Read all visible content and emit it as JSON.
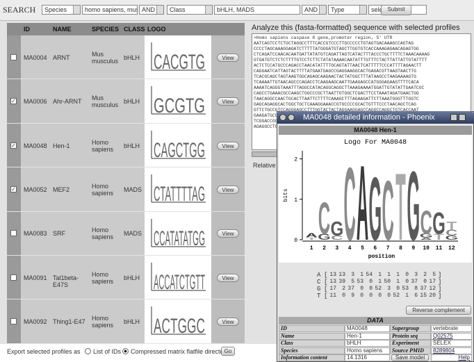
{
  "search": {
    "label": "SEARCH",
    "field1": "Species",
    "value1": "homo sapiens, mus mu",
    "op1": "AND",
    "field2": "Class",
    "value2": "bHLH, MADS",
    "op2": "AND",
    "field3": "Type",
    "value3": "selex",
    "submit": "Submit"
  },
  "table": {
    "headers": [
      "ID",
      "NAME",
      "SPECIES",
      "CLASS",
      "LOGO"
    ],
    "rows": [
      {
        "checked": false,
        "id": "MA0004",
        "name": "ARNT",
        "species": "Mus musculus",
        "class": "bHLH",
        "logo": "CACGTG",
        "button": "View"
      },
      {
        "checked": true,
        "id": "MA0006",
        "name": "Ahr-ARNT",
        "species": "Mus musculus",
        "class": "bHLH",
        "logo": "GCGTG",
        "button": "View"
      },
      {
        "checked": true,
        "id": "MA0048",
        "name": "Hen-1",
        "species": "Homo sapiens",
        "class": "bHLH",
        "logo": "CAGCTGG",
        "button": "View"
      },
      {
        "checked": true,
        "id": "MA0052",
        "name": "MEF2",
        "species": "Homo sapiens",
        "class": "MADS",
        "logo": "CTATTTTAG",
        "button": "View"
      },
      {
        "checked": false,
        "id": "MA0083",
        "name": "SRF",
        "species": "Homo sapiens",
        "class": "MADS",
        "logo": "CCATATATGG",
        "button": "View"
      },
      {
        "checked": false,
        "id": "MA0091",
        "name": "Tal1beta-E47S",
        "species": "Homo sapiens",
        "class": "bHLH",
        "logo": "ACCATCTGTT",
        "button": "View"
      },
      {
        "checked": false,
        "id": "MA0092",
        "name": "Thing1-E47",
        "species": "Homo sapiens",
        "class": "bHLH",
        "logo": "ACTGGC",
        "button": "View"
      }
    ]
  },
  "export": {
    "label": "Export selected profiles as",
    "option1": "List of IDs",
    "option2": "Compressed matrix flatfile directory",
    "selected": 2,
    "button": "Go"
  },
  "analyze": {
    "title": "Analyze this (fasta-formatted) sequence with selected profiles",
    "sequence": [
      ">Homo sapiens caspase 8 gene,promoter region, 5' UTR",
      "AATCAGTCCTCTGCTAGGCCTTTCACCGTCCCTTGCCCCCTGTAGTGACAAAGCCAGTAG",
      "CCCCTAGCAAAGGAGATCTTTTTATGGGATGTAGCTTGGTGTCACCAAAGAGAACAGAGTGG",
      "CTCAGATCCAACACAATGATTATATGTCAGATTAGTCATACTTTACCCTGCTTTTCTAAACAAAAG",
      "GTGATGTCTCTCTTTTGTCCTCTTCTATATAAAACAATATTTGTTTCTACTTATTATTGTATTTT",
      "ACTCTCCATGCCCAGACCTAACATATTTTGCAGTATTAACTCATTTTTCCCATTTTAGAACTT",
      "CAGGAATCATTAGTACTTTTATGAATGAGCCGAGGAAGGCACTGAGACGTTAAGTAACTTG",
      "TCACGCAGCTAGTAAGTGGCAGAGCAAGAACTACTATGGCTTTATAAGCCTAAGAAAAGTG",
      "TCAAAATTGTAACAGCCCAGACCTCAAGAAGCAATTGAAGAGCCATGGGAGAAGTTTTCACA",
      "AAAATCAGGGTAAATTTAGGCCATACAGGCAGGCTTAAAGAAAATGGATTGTATATTGAATCGC",
      "CAGCCTGAAACGCCAAGCTGGCCCGCTTAATTGTGGCTCGACTTCCTAAATAGATGAACTGG",
      "TAACAGGCCAACTGCACTTAATTCTTTTCAAAGCTTTAGAAGATTCTTAAATGGGTTTGGTC",
      "GAGCAGAGGCACTGGCTGCTCAAAGGAAACCGTGCCCCGCACTGTTTCCCTAACAGCTCAG",
      "GTTCTGCCGTCCAGGGAGCCTTTGGTACTACTAGGAAGGAGCCAGGCCAGGCTGTCACCAAT",
      "GAAGATGCCAGTTCAAGGCCTAAAGGATTTGGCCTCACCTAAGCCCCTCCAGCTGCCCTAAC",
      "TCGGACCGGCTCCTCAGCCTTCCCTAAAGTCCTTCCAAGCAGGGCCTGACTCACCTCCAAAG",
      "AGAGGCCTCCCGCCTGCAGACTGGCCCCGCGTCAGCCCCGCCTTCGCCCGCCCACCTCAAT"
    ],
    "label": "Relative p"
  },
  "popup": {
    "title": "MA0048 detailed information - Phoenix",
    "header": "MA0048 Hen-1",
    "logo_title": "Logo For MA0048",
    "y_label": "bits",
    "ylim": [
      0,
      2.2
    ],
    "yticks": [
      0,
      1,
      2
    ],
    "x_label": "position",
    "positions": [
      1,
      2,
      3,
      4,
      5,
      6,
      7,
      8,
      9,
      10,
      11,
      12
    ],
    "stacks": [
      [
        {
          "letter": "T",
          "height": 0.06
        },
        {
          "letter": "A",
          "height": 0.1
        }
      ],
      [
        {
          "letter": "G",
          "height": 0.15
        },
        {
          "letter": "C",
          "height": 0.8
        }
      ],
      [
        {
          "letter": "C",
          "height": 0.1
        },
        {
          "letter": "G",
          "height": 0.35
        }
      ],
      [
        {
          "letter": "C",
          "height": 1.85
        }
      ],
      [
        {
          "letter": "A",
          "height": 1.9
        }
      ],
      [
        {
          "letter": "G",
          "height": 1.6
        }
      ],
      [
        {
          "letter": "C",
          "height": 1.5
        }
      ],
      [
        {
          "letter": "T",
          "height": 1.7
        }
      ],
      [
        {
          "letter": "G",
          "height": 1.75
        }
      ],
      [
        {
          "letter": "A",
          "height": 0.05
        },
        {
          "letter": "G",
          "height": 0.1
        },
        {
          "letter": "C",
          "height": 0.6
        }
      ],
      [
        {
          "letter": "T",
          "height": 0.15
        },
        {
          "letter": "G",
          "height": 0.55
        }
      ],
      [
        {
          "letter": "G",
          "height": 0.1
        },
        {
          "letter": "C",
          "height": 0.15
        },
        {
          "letter": "T",
          "height": 0.2
        }
      ]
    ],
    "matrix": [
      {
        "base": "A",
        "counts": [
          13,
          13,
          3,
          1,
          54,
          1,
          1,
          1,
          0,
          3,
          2,
          5
        ]
      },
      {
        "base": "C",
        "counts": [
          13,
          39,
          5,
          53,
          0,
          1,
          50,
          1,
          0,
          37,
          0,
          17
        ]
      },
      {
        "base": "G",
        "counts": [
          17,
          2,
          37,
          0,
          0,
          52,
          3,
          0,
          53,
          8,
          37,
          12
        ]
      },
      {
        "base": "T",
        "counts": [
          11,
          0,
          9,
          0,
          0,
          0,
          0,
          52,
          1,
          6,
          15,
          20
        ]
      }
    ],
    "reverse_button": "Reverse complement",
    "data_title": "DATA",
    "data_rows": [
      [
        "ID",
        "MA0048",
        "Supergroup",
        "vertebrate"
      ],
      [
        "Name",
        "Hen-1",
        "Protein seq",
        "Q02575"
      ],
      [
        "Class",
        "bHLH",
        "Experiment",
        "SELEX"
      ],
      [
        "Species",
        "Homo sapiens",
        "Source PMID",
        "8289804"
      ],
      [
        "Information content",
        "14.1316",
        "Save model",
        "Help"
      ]
    ]
  },
  "help": "help"
}
